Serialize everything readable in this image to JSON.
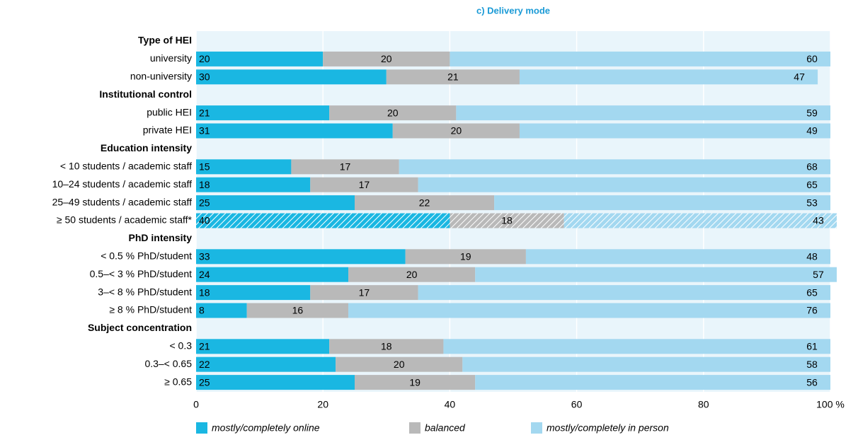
{
  "chart_data": {
    "type": "stacked_barh",
    "title": "c) Delivery mode",
    "categories": [
      "Type of HEI",
      "university",
      "non-university",
      "Institutional control",
      "public HEI",
      "private HEI",
      "Education intensity",
      "< 10 students / academic staff",
      "10–24 students / academic staff",
      "25–49 students / academic staff",
      "≥ 50 students / academic staff*",
      "PhD intensity",
      "< 0.5 % PhD/student",
      "0.5–< 3 % PhD/student",
      "3–< 8 % PhD/student",
      "≥ 8 % PhD/student",
      "Subject concentration",
      "< 0.3",
      "0.3–< 0.65",
      "≥ 0.65"
    ],
    "series": [
      {
        "name": "mostly/completely online",
        "color": "#1ab7e2",
        "values": [
          null,
          20,
          30,
          null,
          21,
          31,
          null,
          15,
          18,
          25,
          40,
          null,
          33,
          24,
          18,
          8,
          null,
          21,
          22,
          25
        ]
      },
      {
        "name": "balanced",
        "color": "#b9b9b9",
        "values": [
          null,
          20,
          21,
          null,
          20,
          20,
          null,
          17,
          17,
          22,
          18,
          null,
          19,
          20,
          17,
          16,
          null,
          18,
          20,
          19
        ]
      },
      {
        "name": "mostly/completely in person",
        "color": "#a3d8f0",
        "values": [
          null,
          60,
          47,
          null,
          59,
          49,
          null,
          68,
          65,
          53,
          43,
          null,
          48,
          57,
          65,
          76,
          null,
          61,
          58,
          56
        ]
      }
    ],
    "xlim": [
      0,
      100
    ],
    "xticks": [
      0,
      20,
      40,
      60,
      80,
      {
        "value": 100,
        "label": "100 %"
      }
    ],
    "grid": true
  }
}
